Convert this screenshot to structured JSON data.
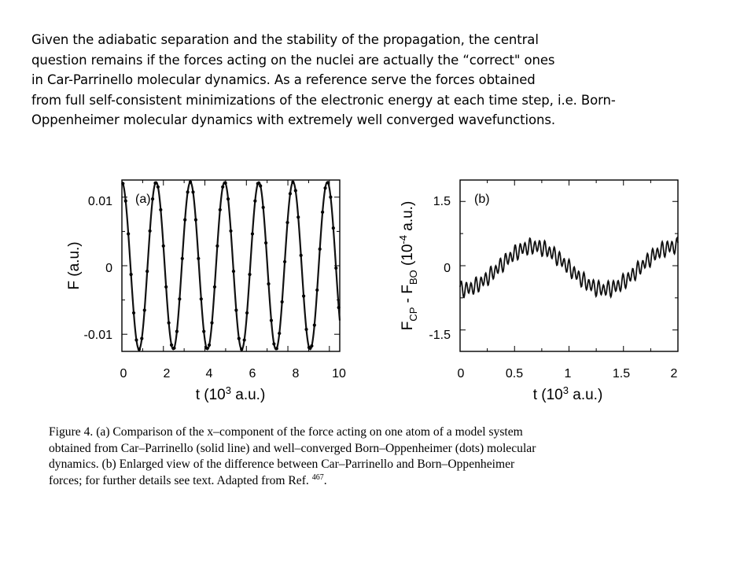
{
  "intro": {
    "lines": [
      "Given the adiabatic separation and the stability of the propagation, the central",
      "question remains if the forces acting on the nuclei are actually the “correct\" ones",
      "in Car-Parrinello molecular dynamics. As a reference serve the forces obtained",
      "from full self-consistent minimizations of the electronic energy at each time step, i.e. Born-",
      "Oppenheimer molecular dynamics with extremely well converged wavefunctions."
    ]
  },
  "chart_data": [
    {
      "type": "line",
      "panel_label": "(a)",
      "xlabel_text": "t (10",
      "xlabel_sup": "3",
      "xlabel_tail": " a.u.)",
      "ylabel": "F (a.u.)",
      "xlim": [
        0,
        10.5
      ],
      "ylim": [
        -0.0125,
        0.0125
      ],
      "xticks": [
        "0",
        "2",
        "4",
        "6",
        "8",
        "10"
      ],
      "yticks": [
        "0.01",
        "0",
        "-0.01"
      ],
      "series": [
        {
          "style": "solid line",
          "function": "sinusoid",
          "amplitude": 0.0122,
          "period_1e3_au": 1.65,
          "phase_peak_at": 0.0
        },
        {
          "style": "dots",
          "function": "sinusoid",
          "amplitude": 0.0122,
          "period_1e3_au": 1.65,
          "phase_peak_at": 0.0,
          "sampling_1e3_au": 0.13
        }
      ]
    },
    {
      "type": "line",
      "panel_label": "(b)",
      "xlabel_text": "t (10",
      "xlabel_sup": "3",
      "xlabel_tail": " a.u.)",
      "ylabel_main": "F",
      "ylabel_sub1": "CP",
      "ylabel_mid": " - F",
      "ylabel_sub2": "BO",
      "ylabel_unit_pre": " (10",
      "ylabel_unit_sup": "-4",
      "ylabel_unit_post": " a.u.)",
      "xlim": [
        0,
        2
      ],
      "ylim": [
        -2.0,
        2.0
      ],
      "xticks": [
        "0",
        "0.5",
        "1",
        "1.5",
        "2"
      ],
      "yticks": [
        "1.5",
        "0",
        "-1.5"
      ],
      "series": [
        {
          "style": "solid line",
          "description": "slow wave with fast ripple",
          "slow_amplitude": 0.5,
          "slow_period_1e3_au": 1.3,
          "ripple_amplitude": 0.15,
          "ripple_period_1e3_au": 0.045
        }
      ]
    }
  ],
  "caption": {
    "lines": [
      "Figure 4.  (a) Comparison of the x–component of the force acting on one atom of a model system",
      "obtained from Car–Parrinello (solid line) and well–converged Born–Oppenheimer (dots) molecular",
      "dynamics.  (b) Enlarged view of the difference between Car–Parrinello and Born–Oppenheimer",
      "forces; for further details see text.  Adapted from Ref."
    ],
    "ref_number": "467",
    "tail": "."
  }
}
